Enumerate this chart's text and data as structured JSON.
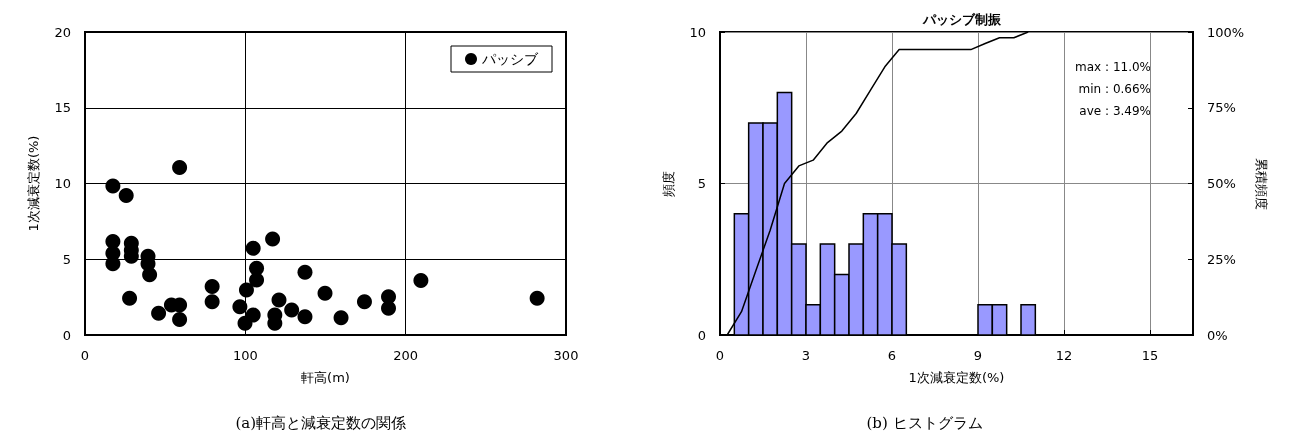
{
  "chart_data": [
    {
      "type": "scatter",
      "xlabel": "軒高(m)",
      "ylabel": "1次減衰定数(%)",
      "xlim": [
        0,
        300
      ],
      "xticks": [
        0,
        100,
        200,
        300
      ],
      "ylim": [
        0,
        20
      ],
      "yticks": [
        0,
        5,
        10,
        15,
        20
      ],
      "grid": true,
      "legend": "top right",
      "marker": "circle",
      "annotations": [
        "(a)軒高と減衰定数の関係"
      ],
      "series": [
        {
          "name": "パッシブ",
          "color": "#000000",
          "x": [
            59,
            17.4,
            25.7,
            17.4,
            17.4,
            17.4,
            28.9,
            28.9,
            28.9,
            39.3,
            39.3,
            40.3,
            27.8,
            45.9,
            53.9,
            59,
            59,
            79.3,
            79.3,
            96.6,
            100.7,
            99.8,
            104.9,
            104.9,
            107,
            107,
            117,
            121,
            118.4,
            118.4,
            128.9,
            137.2,
            137.2,
            149.7,
            159.7,
            174.3,
            189.3,
            189.3,
            209.5,
            282
          ],
          "values": [
            11.06,
            9.83,
            9.2,
            6.17,
            5.4,
            4.7,
            6.06,
            5.6,
            5.2,
            5.2,
            4.7,
            3.97,
            2.42,
            1.43,
            1.98,
            1.98,
            1.03,
            3.2,
            2.2,
            1.87,
            2.97,
            0.77,
            1.32,
            5.73,
            4.4,
            3.63,
            6.34,
            2.31,
            1.32,
            0.77,
            1.65,
            1.21,
            4.14,
            2.76,
            1.14,
            2.2,
            2.53,
            1.76,
            3.59,
            2.42
          ]
        }
      ]
    },
    {
      "type": "histogram",
      "title": "パッシブ制振",
      "xlabel": "1次減衰定数(%)",
      "ylabel": "頻度",
      "y2label": "累積頻度",
      "xlim": [
        0,
        16.5
      ],
      "xticks": [
        0,
        3,
        6,
        9,
        12,
        15
      ],
      "ylim": [
        0,
        10
      ],
      "yticks": [
        0,
        5,
        10
      ],
      "y2lim": [
        0,
        100
      ],
      "y2ticks": [
        {
          "value": 0,
          "label": "0%"
        },
        {
          "value": 25,
          "label": "25%"
        },
        {
          "value": 50,
          "label": "50%"
        },
        {
          "value": 75,
          "label": "75%"
        },
        {
          "value": 100,
          "label": "100%"
        }
      ],
      "grid": true,
      "legend": false,
      "annotations": [
        "max : 11.0%",
        "min : 0.66%",
        "ave : 3.49%",
        "(b) ヒストグラム"
      ],
      "bins": [
        0.5,
        1,
        1.5,
        2,
        2.5,
        3,
        3.5,
        4,
        4.5,
        5,
        5.5,
        6,
        6.5,
        7,
        7.5,
        8,
        8.5,
        9,
        9.5,
        10,
        10.5,
        11
      ],
      "values": [
        4,
        7,
        7,
        8,
        3,
        1,
        3,
        2,
        3,
        4,
        4,
        3,
        0,
        0,
        0,
        0,
        0,
        1,
        1,
        0,
        1
      ],
      "color": "#9999ff",
      "series": [
        {
          "type": "line",
          "axis": "y2",
          "color": "#000000",
          "x": [
            0.25,
            0.75,
            1.25,
            1.75,
            2.25,
            2.75,
            3.25,
            3.75,
            4.25,
            4.75,
            5.25,
            5.75,
            6.25,
            6.75,
            7.25,
            7.75,
            8.25,
            8.75,
            9.25,
            9.75,
            10.25,
            10.75
          ],
          "values": [
            0,
            7.7,
            21.2,
            34.6,
            50,
            55.8,
            57.7,
            63.5,
            67.3,
            73.1,
            80.8,
            88.5,
            94.2,
            94.2,
            94.2,
            94.2,
            94.2,
            94.2,
            96.2,
            98.1,
            98.1,
            100
          ]
        }
      ]
    }
  ]
}
